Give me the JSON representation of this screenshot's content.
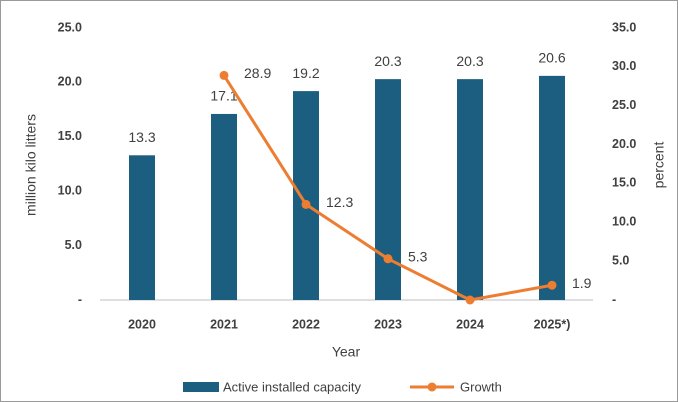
{
  "chart_data": {
    "type": "bar",
    "x_label": "Year",
    "y_label": "million kilo litters",
    "y2_label": "percent",
    "categories": [
      "2020",
      "2021",
      "2022",
      "2023",
      "2024",
      "2025*)"
    ],
    "series": [
      {
        "name": "Active installed capacity",
        "color": "#1b5e80",
        "values": [
          13.3,
          17.1,
          19.2,
          20.3,
          20.3,
          20.6
        ]
      },
      {
        "name": "Growth",
        "type": "line",
        "axis": "y2",
        "color": "#ed7d31",
        "values": [
          null,
          28.9,
          12.3,
          5.3,
          0,
          1.9
        ],
        "value_labels": [
          null,
          "28.9",
          "12.3",
          "5.3",
          null,
          "1.9"
        ]
      }
    ],
    "ylim": [
      0,
      25
    ],
    "yticks": [
      {
        "value": 0,
        "label": "-"
      },
      {
        "value": 5,
        "label": "5.0"
      },
      {
        "value": 10,
        "label": "10.0"
      },
      {
        "value": 15,
        "label": "15.0"
      },
      {
        "value": 20,
        "label": "20.0"
      },
      {
        "value": 25,
        "label": "25.0"
      }
    ],
    "y2lim": [
      0,
      35
    ],
    "y2ticks": [
      {
        "value": 0,
        "label": "-"
      },
      {
        "value": 5,
        "label": "5.0"
      },
      {
        "value": 10,
        "label": "10.0"
      },
      {
        "value": 15,
        "label": "15.0"
      },
      {
        "value": 20,
        "label": "20.0"
      },
      {
        "value": 25,
        "label": "25.0"
      },
      {
        "value": 30,
        "label": "30.0"
      },
      {
        "value": 35,
        "label": "35.0"
      }
    ],
    "grid": false,
    "legend": "bottom"
  }
}
